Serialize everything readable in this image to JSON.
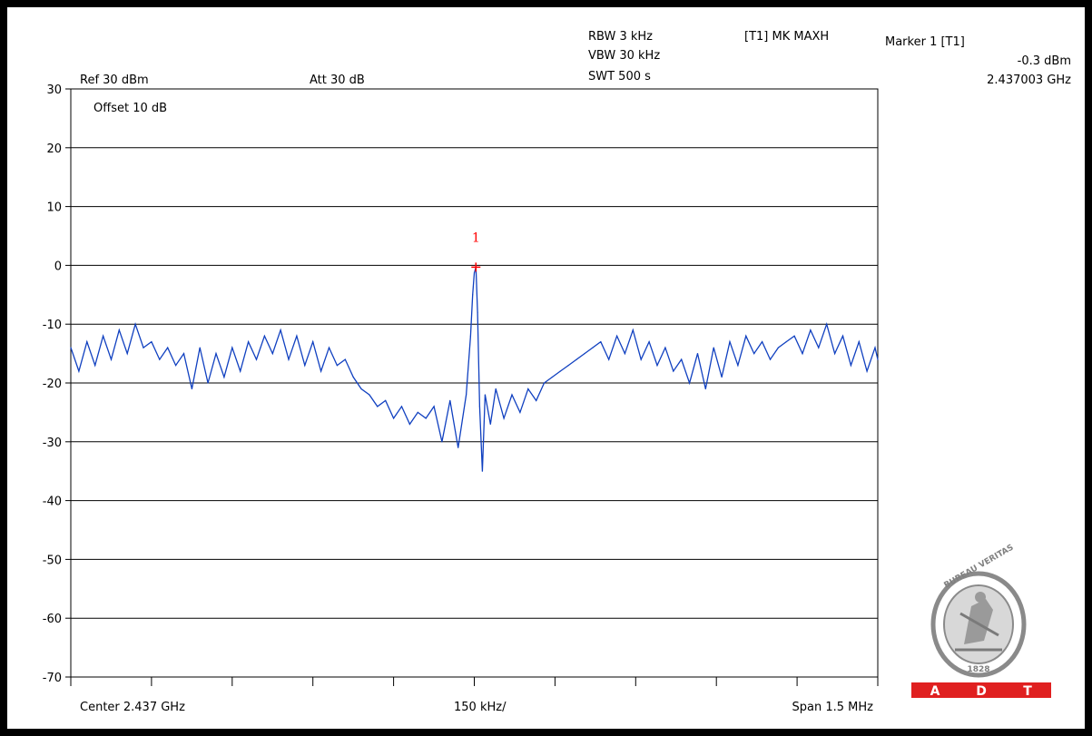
{
  "header": {
    "ref_level": "Ref 30 dBm",
    "attenuation": "Att  30 dB",
    "offset": "Offset 10 dB",
    "rbw": "RBW 3 kHz",
    "vbw": "VBW 30 kHz",
    "swt": "SWT 500 s",
    "trace_mode": "[T1] MK MAXH"
  },
  "marker": {
    "title": "Marker 1 [T1]",
    "level": "-0.3 dBm",
    "frequency": "2.437003 GHz",
    "label": "1",
    "x_mhz": 2.437003,
    "y_dbm": -0.3
  },
  "footer": {
    "center": "Center 2.437 GHz",
    "per_div": "150 kHz/",
    "span": "Span 1.5 MHz"
  },
  "logo": {
    "arc_text": "BUREAU VERITAS",
    "year": "1828",
    "banner": [
      "A",
      "D",
      "T"
    ]
  },
  "colors": {
    "trace": "#1040c0",
    "marker": "#ff0000",
    "banner": "#e02020",
    "grid": "#000000"
  },
  "chart_data": {
    "type": "line",
    "title": "",
    "xlabel": "",
    "ylabel": "",
    "x_unit": "GHz",
    "y_unit": "dBm",
    "xlim": [
      2.43625,
      2.43775
    ],
    "ylim": [
      -70,
      30
    ],
    "y_ticks": [
      30,
      20,
      10,
      0,
      -10,
      -20,
      -30,
      -40,
      -50,
      -60,
      -70
    ],
    "y_tick_labels": [
      "30",
      "20",
      "10",
      "0",
      "-10",
      "-20",
      "-30",
      "-40",
      "-50",
      "-60",
      "-70"
    ],
    "x_divisions": 10,
    "grid": true,
    "series": [
      {
        "x": [
          2.43625,
          2.436265,
          2.43628,
          2.436295,
          2.43631,
          2.436325,
          2.43634,
          2.436355,
          2.43637,
          2.436385,
          2.4364,
          2.436415,
          2.43643,
          2.436445,
          2.43646,
          2.436475,
          2.43649,
          2.436505,
          2.43652,
          2.436535,
          2.43655,
          2.436565,
          2.43658,
          2.436595,
          2.43661,
          2.436625,
          2.43664,
          2.436655,
          2.43667,
          2.436685,
          2.4367,
          2.436715,
          2.43673,
          2.436745,
          2.43676,
          2.436775,
          2.43679,
          2.436805,
          2.43682,
          2.436835,
          2.43685,
          2.436865,
          2.43688,
          2.436895,
          2.43691,
          2.436925,
          2.43694,
          2.436955,
          2.43697,
          2.436985,
          2.436993,
          2.436997,
          2.437,
          2.437003,
          2.437006,
          2.43701,
          2.437015,
          2.43702,
          2.43703,
          2.43704,
          2.437055,
          2.43707,
          2.437085,
          2.4371,
          2.437115,
          2.43713,
          2.437145,
          2.43716,
          2.437175,
          2.43719,
          2.437205,
          2.43722,
          2.437235,
          2.43725,
          2.437265,
          2.43728,
          2.437295,
          2.43731,
          2.437325,
          2.43734,
          2.437355,
          2.43737,
          2.437385,
          2.4374,
          2.437415,
          2.43743,
          2.437445,
          2.43746,
          2.437475,
          2.43749,
          2.437505,
          2.43752,
          2.437535,
          2.43755,
          2.437565,
          2.43758,
          2.437595,
          2.43761,
          2.437625,
          2.43764,
          2.437655,
          2.43767,
          2.437685,
          2.4377,
          2.437715,
          2.43773,
          2.437745,
          2.43775
        ],
        "y": [
          -14,
          -18,
          -13,
          -17,
          -12,
          -16,
          -11,
          -15,
          -10,
          -14,
          -13,
          -16,
          -14,
          -17,
          -15,
          -21,
          -14,
          -20,
          -15,
          -19,
          -14,
          -18,
          -13,
          -16,
          -12,
          -15,
          -11,
          -16,
          -12,
          -17,
          -13,
          -18,
          -14,
          -17,
          -16,
          -19,
          -21,
          -22,
          -24,
          -23,
          -26,
          -24,
          -27,
          -25,
          -26,
          -24,
          -30,
          -23,
          -31,
          -22,
          -12,
          -5,
          -1.3,
          -0.3,
          -8,
          -24,
          -35,
          -22,
          -27,
          -21,
          -26,
          -22,
          -25,
          -21,
          -23,
          -20,
          -19,
          -18,
          -17,
          -16,
          -15,
          -14,
          -13,
          -16,
          -12,
          -15,
          -11,
          -16,
          -13,
          -17,
          -14,
          -18,
          -16,
          -20,
          -15,
          -21,
          -14,
          -19,
          -13,
          -17,
          -12,
          -15,
          -13,
          -16,
          -14,
          -13,
          -12,
          -15,
          -11,
          -14,
          -10,
          -15,
          -12,
          -17,
          -13,
          -18,
          -14,
          -16
        ]
      }
    ]
  }
}
